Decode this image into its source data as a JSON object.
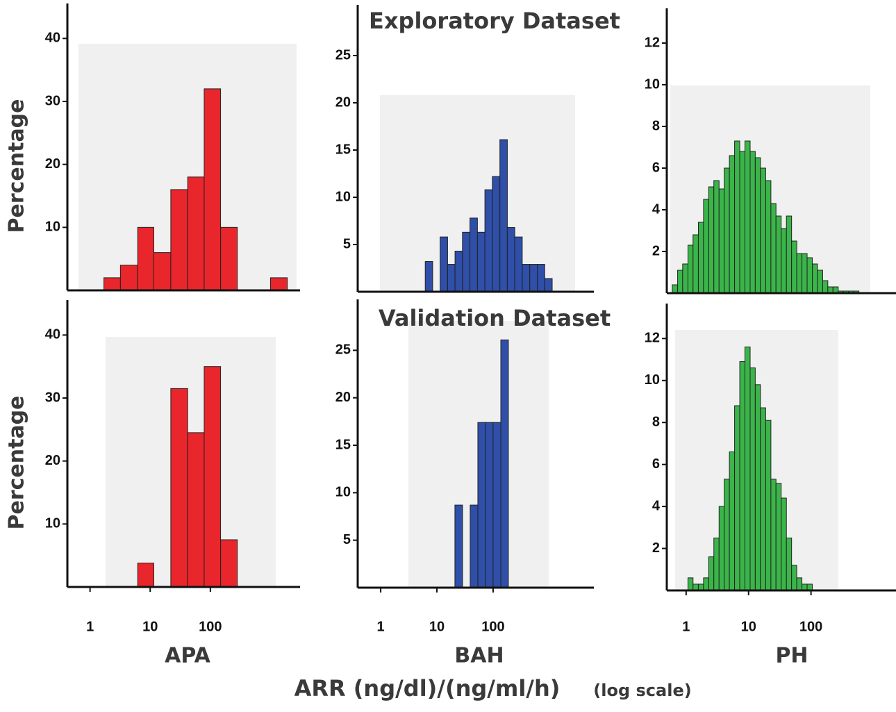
{
  "chart_data": [
    {
      "type": "histogram",
      "ylabel": "Percentage",
      "xscale": "log",
      "color": "#e8262c",
      "bins": [
        1.7,
        3.2,
        6.2,
        11.5,
        22,
        42,
        79,
        148,
        280,
        540,
        1000,
        1900
      ],
      "values": [
        2,
        4,
        10,
        6,
        16,
        18,
        32,
        10,
        0,
        0,
        2
      ],
      "xlim": [
        0.42,
        3100
      ],
      "ylim": [
        0,
        45
      ],
      "yticks": [
        10,
        20,
        30,
        40
      ]
    },
    {
      "type": "histogram",
      "title": "Exploratory Dataset",
      "xscale": "log",
      "color": "#2f4fa8",
      "bins": [
        6.2,
        8.4,
        11.4,
        15.5,
        21,
        28.5,
        38.7,
        52.6,
        71.4,
        97,
        132,
        179,
        243,
        330,
        449,
        610,
        828,
        1125
      ],
      "values": [
        3.2,
        0,
        5.8,
        2.9,
        4.3,
        6.3,
        7.8,
        6.3,
        10.8,
        12.2,
        16.1,
        6.8,
        5.8,
        2.9,
        2.9,
        2.9,
        1.4
      ],
      "xlim": [
        0.39,
        6200
      ],
      "ylim": [
        0,
        30
      ],
      "yticks": [
        5,
        10,
        15,
        20,
        25
      ]
    },
    {
      "type": "histogram",
      "xscale": "log",
      "color": "#3bb54a",
      "bins": [
        0.6,
        0.73,
        0.88,
        1.07,
        1.29,
        1.57,
        1.9,
        2.3,
        2.78,
        3.37,
        4.07,
        4.93,
        5.97,
        7.23,
        8.75,
        10.6,
        12.8,
        15.5,
        18.8,
        22.8,
        27.5,
        33.3,
        40.4,
        48.9,
        59.2,
        71.6,
        86.7,
        105,
        127,
        154,
        186,
        225,
        273,
        330,
        400,
        484,
        586
      ],
      "values": [
        0.4,
        1.1,
        1.4,
        2.3,
        2.8,
        3.4,
        4.5,
        5.1,
        5.4,
        5,
        6,
        6.6,
        7.3,
        6.8,
        7.3,
        6.8,
        6.5,
        6,
        5.4,
        4.3,
        3.7,
        3.1,
        3.7,
        2.5,
        1.9,
        1.9,
        1.7,
        1.4,
        1.1,
        0.6,
        0.3,
        0.3,
        0.1,
        0.1,
        0.1,
        0.1
      ],
      "xlim": [
        0.49,
        2300
      ],
      "ylim": [
        0,
        13.5
      ],
      "yticks": [
        2,
        4,
        6,
        8,
        10,
        12
      ]
    },
    {
      "type": "histogram",
      "ylabel": "Percentage",
      "xlabel": "APA",
      "xscale": "log",
      "color": "#e8262c",
      "bins": [
        6.2,
        11.5,
        22,
        42,
        79,
        148,
        280
      ],
      "values": [
        3.8,
        0,
        31.5,
        24.5,
        35,
        7.5
      ],
      "xlim": [
        0.42,
        3100
      ],
      "ylim": [
        0,
        45
      ],
      "yticks": [
        10,
        20,
        30,
        40
      ],
      "xticks": [
        1,
        10,
        100
      ]
    },
    {
      "type": "histogram",
      "title": "Validation Dataset",
      "xlabel": "BAH",
      "xscale": "log",
      "color": "#2f4fa8",
      "bins": [
        20.9,
        28.6,
        39.1,
        53.5,
        73.1,
        100,
        137,
        187
      ],
      "values": [
        8.7,
        0,
        8.7,
        17.4,
        17.4,
        17.4,
        26.1
      ],
      "xlim": [
        0.39,
        6200
      ],
      "ylim": [
        0,
        30
      ],
      "yticks": [
        5,
        10,
        15,
        20,
        25
      ],
      "xticks": [
        1,
        10,
        100
      ]
    },
    {
      "type": "histogram",
      "xlabel": "PH",
      "xscale": "log",
      "color": "#3bb54a",
      "bins": [
        1.07,
        1.29,
        1.57,
        1.9,
        2.3,
        2.78,
        3.37,
        4.07,
        4.93,
        5.97,
        7.23,
        8.75,
        10.6,
        12.8,
        15.5,
        18.8,
        22.8,
        27.5,
        33.3,
        40.4,
        48.9,
        59.2,
        71.6,
        86.7,
        105
      ],
      "values": [
        0.6,
        0.3,
        0.3,
        0.6,
        1.6,
        2.5,
        4,
        5.3,
        6.6,
        8.8,
        10.9,
        11.6,
        10.6,
        9.8,
        8.7,
        8.1,
        5.3,
        5.1,
        4.4,
        2.5,
        1.2,
        0.6,
        0.3,
        0.3
      ],
      "xlim": [
        0.49,
        2300
      ],
      "ylim": [
        0,
        13.5
      ],
      "yticks": [
        2,
        4,
        6,
        8,
        10,
        12
      ],
      "xticks": [
        1,
        10,
        100
      ]
    }
  ],
  "x_axis_title": "ARR (ng/dl)/(ng/ml/h)",
  "x_axis_note": "(log scale)"
}
